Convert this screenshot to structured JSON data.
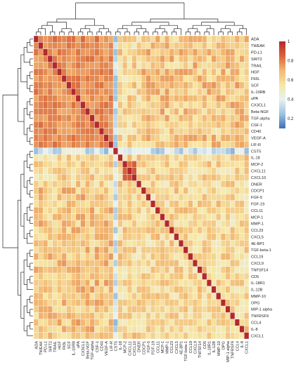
{
  "chart_data": {
    "type": "heatmap",
    "title": "",
    "xlabel": "",
    "ylabel": "",
    "value_range": [
      0.1,
      1.0
    ],
    "colorbar": {
      "ticks": [
        0.2,
        0.4,
        0.6,
        0.8,
        1
      ],
      "tick_labels": [
        "0.2",
        "0.4",
        "0.6",
        "0.8",
        "1"
      ],
      "colors": [
        "#3b6fb6",
        "#9ec3de",
        "#e8f1f2",
        "#f6e7a6",
        "#f2b872",
        "#d9643a",
        "#b2292f"
      ],
      "placement": "top-right"
    },
    "dendrograms": [
      "top",
      "left"
    ],
    "grid": true,
    "row_labels": [
      "ADA",
      "TWEAK",
      "PD-L1",
      "SIRT2",
      "TRAIL",
      "HGF",
      "Flt3L",
      "SCF",
      "IL-10RB",
      "uPA",
      "CX3CL1",
      "Beta-NGF",
      "TGF-alpha",
      "CSF-1",
      "CD40",
      "VEGF-A",
      "LIF-R",
      "CST5",
      "IL-18",
      "MCP-2",
      "CXCL11",
      "CXCL10",
      "DNER",
      "CDCP1",
      "FGF-5",
      "FGF-19",
      "CCL11",
      "MCP-1",
      "MMP-1",
      "CCL23",
      "CXCL5",
      "4E-BP1",
      "TGF-beta-1",
      "CCL19",
      "CXCL9",
      "TNFSF14",
      "CD5",
      "IL-18R1",
      "IL-12B",
      "MMP-10",
      "OPG",
      "MIP-1 alpha",
      "TNFRSF9",
      "CCL4",
      "IL-8",
      "CXCL1"
    ],
    "col_labels": [
      "ADA",
      "TWEAK",
      "PD-L1",
      "SIRT2",
      "TRAIL",
      "HGF",
      "Flt3L",
      "SCF",
      "IL-10RB",
      "uPA",
      "CX3CL1",
      "Beta-NGF",
      "TGF-alpha",
      "CSF-1",
      "CD40",
      "VEGF-A",
      "LIF-R",
      "CST5",
      "IL-18",
      "MCP-2",
      "CXCL11",
      "CXCL10",
      "DNER",
      "CDCP1",
      "FGF-5",
      "FGF-19",
      "CCL11",
      "MCP-1",
      "MMP-1",
      "CCL23",
      "CXCL5",
      "4E-BP1",
      "TGF-beta-1",
      "CCL19",
      "CXCL9",
      "TNFSF14",
      "CD5",
      "IL-18R1",
      "IL-12B",
      "MMP-10",
      "OPG",
      "MIP-1 alpha",
      "TNFRSF9",
      "CCL4",
      "IL-8",
      "CXCL1"
    ],
    "blocks": [
      {
        "rows": [
          0,
          16
        ],
        "cols": [
          0,
          16
        ],
        "value": 0.78
      },
      {
        "rows": [
          19,
          21
        ],
        "cols": [
          19,
          21
        ],
        "value": 0.85
      }
    ],
    "diagonal_value": 1.0,
    "low_row": 17,
    "low_value": 0.3,
    "background_value": 0.6
  }
}
